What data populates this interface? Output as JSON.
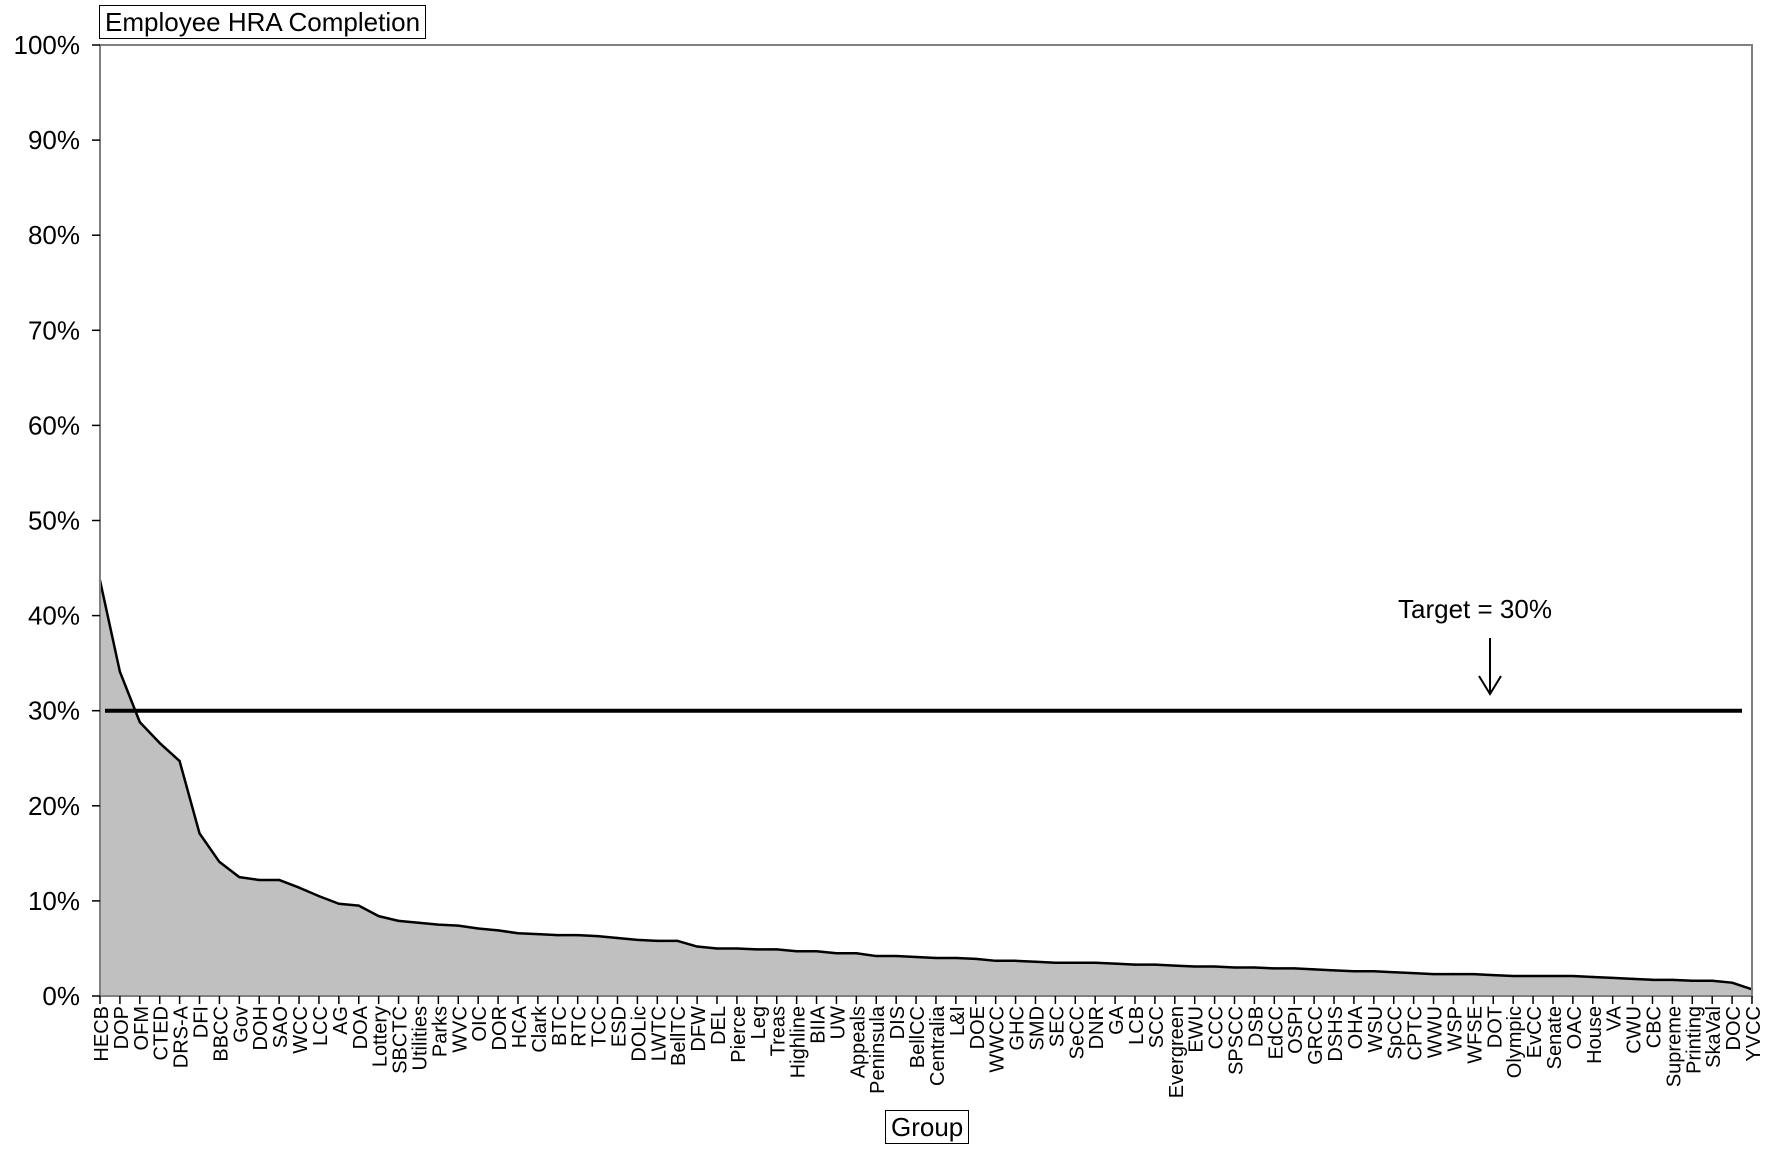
{
  "chart_data": {
    "type": "area",
    "title": "Employee HRA Completion",
    "xlabel": "Group",
    "ylabel": "",
    "ylim": [
      0,
      100
    ],
    "yticks": [
      "0%",
      "10%",
      "20%",
      "30%",
      "40%",
      "50%",
      "60%",
      "70%",
      "80%",
      "90%",
      "100%"
    ],
    "grid": false,
    "legend": "none",
    "colors": {
      "area_fill": "#c0c0c0",
      "area_line": "#000000",
      "target_line": "#000000",
      "frame": "#808080"
    },
    "categories": [
      "HECB",
      "DOP",
      "OFM",
      "CTED",
      "DRS-A",
      "DFI",
      "BBCC",
      "Gov",
      "DOH",
      "SAO",
      "WCC",
      "LCC",
      "AG",
      "DOA",
      "Lottery",
      "SBCTC",
      "Utilities",
      "Parks",
      "WVC",
      "OIC",
      "DOR",
      "HCA",
      "Clark",
      "BTC",
      "RTC",
      "TCC",
      "ESD",
      "DOLic",
      "LWTC",
      "BellTC",
      "DFW",
      "DEL",
      "Pierce",
      "Leg",
      "Treas",
      "Highline",
      "BIIA",
      "UW",
      "Appeals",
      "Peninsula",
      "DIS",
      "BellCC",
      "Centralia",
      "L&I",
      "DOE",
      "WWCC",
      "GHC",
      "SMD",
      "SEC",
      "SeCC",
      "DNR",
      "GA",
      "LCB",
      "SCC",
      "Evergreen",
      "EWU",
      "CCC",
      "SPSCC",
      "DSB",
      "EdCC",
      "OSPI",
      "GRCC",
      "DSHS",
      "OHA",
      "WSU",
      "SpCC",
      "CPTC",
      "WWU",
      "WSP",
      "WFSE",
      "DOT",
      "Olympic",
      "EvCC",
      "Senate",
      "OAC",
      "House",
      "VA",
      "CWU",
      "CBC",
      "Supreme",
      "Printing",
      "SkaVal",
      "DOC",
      "YVCC"
    ],
    "series": [
      {
        "values": [
          43.7,
          34.1,
          28.8,
          26.6,
          24.7,
          17.1,
          14.1,
          12.5,
          12.2,
          12.2,
          11.4,
          10.5,
          9.7,
          9.5,
          8.4,
          7.9,
          7.7,
          7.5,
          7.4,
          7.1,
          6.9,
          6.6,
          6.5,
          6.4,
          6.4,
          6.3,
          6.1,
          5.9,
          5.8,
          5.8,
          5.2,
          5.0,
          5.0,
          4.9,
          4.9,
          4.7,
          4.7,
          4.5,
          4.5,
          4.2,
          4.2,
          4.1,
          4.0,
          4.0,
          3.9,
          3.7,
          3.7,
          3.6,
          3.5,
          3.5,
          3.5,
          3.4,
          3.3,
          3.3,
          3.2,
          3.1,
          3.1,
          3.0,
          3.0,
          2.9,
          2.9,
          2.8,
          2.7,
          2.6,
          2.6,
          2.5,
          2.4,
          2.3,
          2.3,
          2.3,
          2.2,
          2.1,
          2.1,
          2.1,
          2.1,
          2.0,
          1.9,
          1.8,
          1.7,
          1.7,
          1.6,
          1.6,
          1.4,
          0.7
        ]
      }
    ],
    "target": {
      "value": 30,
      "label": "Target = 30%"
    }
  }
}
